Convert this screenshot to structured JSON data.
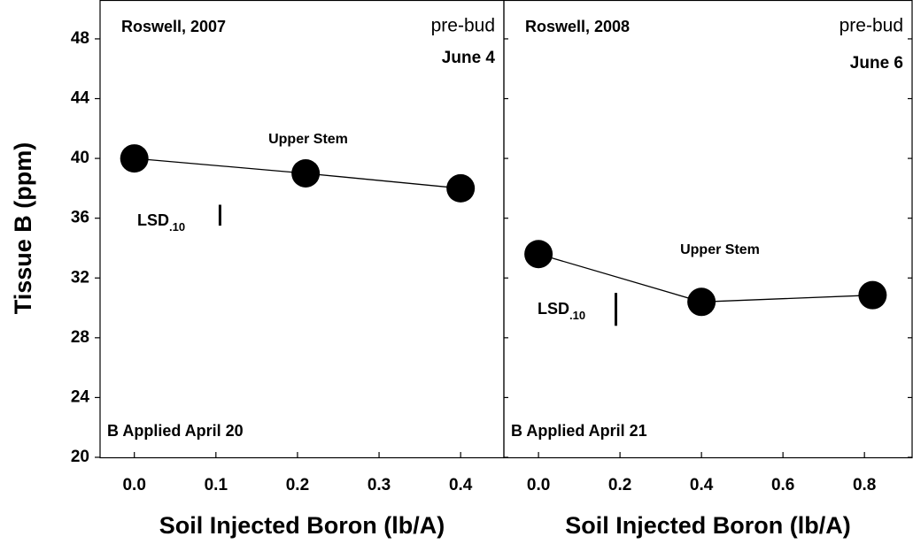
{
  "chart_data": [
    {
      "type": "line",
      "title": "Roswell, 2007",
      "stage": "pre-bud",
      "date": "June 4",
      "note": "B Applied April 20",
      "ylabel": "Tissue B (ppm)",
      "xlabel": "Soil Injected Boron (lb/A)",
      "x": [
        0,
        0.21,
        0.4
      ],
      "series": [
        {
          "name": "Upper Stem",
          "color": "#000000",
          "values": [
            40,
            39,
            38
          ]
        }
      ],
      "lsd_label": "LSD",
      "lsd_sub": ".10",
      "lsd_x": 0.105,
      "lsd_range": [
        35.5,
        36.9
      ],
      "xlim": [
        -0.042,
        0.453
      ],
      "xticks": [
        {
          "value": 0,
          "label": "0.0"
        },
        0.1,
        0.2,
        0.3,
        0.4
      ],
      "ylim": [
        20,
        50.6
      ],
      "yticks": [
        20,
        24,
        28,
        32,
        36,
        40,
        44,
        48
      ]
    },
    {
      "type": "line",
      "title": "Roswell, 2008",
      "stage": "pre-bud",
      "date": "June 6",
      "note": "B Applied April 21",
      "xlabel": "Soil Injected Boron (lb/A)",
      "x": [
        0,
        0.4,
        0.82
      ],
      "series": [
        {
          "name": "Upper Stem",
          "color": "#000000",
          "values": [
            33.6,
            30.4,
            30.85
          ]
        }
      ],
      "lsd_label": "LSD",
      "lsd_sub": ".10",
      "lsd_x": 0.19,
      "lsd_range": [
        28.8,
        31.0
      ],
      "xlim": [
        -0.085,
        0.917
      ],
      "xticks": [
        {
          "value": 0,
          "label": "0.0"
        },
        0.2,
        0.4,
        0.6,
        0.8
      ],
      "ylim": [
        20,
        50.6
      ]
    }
  ]
}
